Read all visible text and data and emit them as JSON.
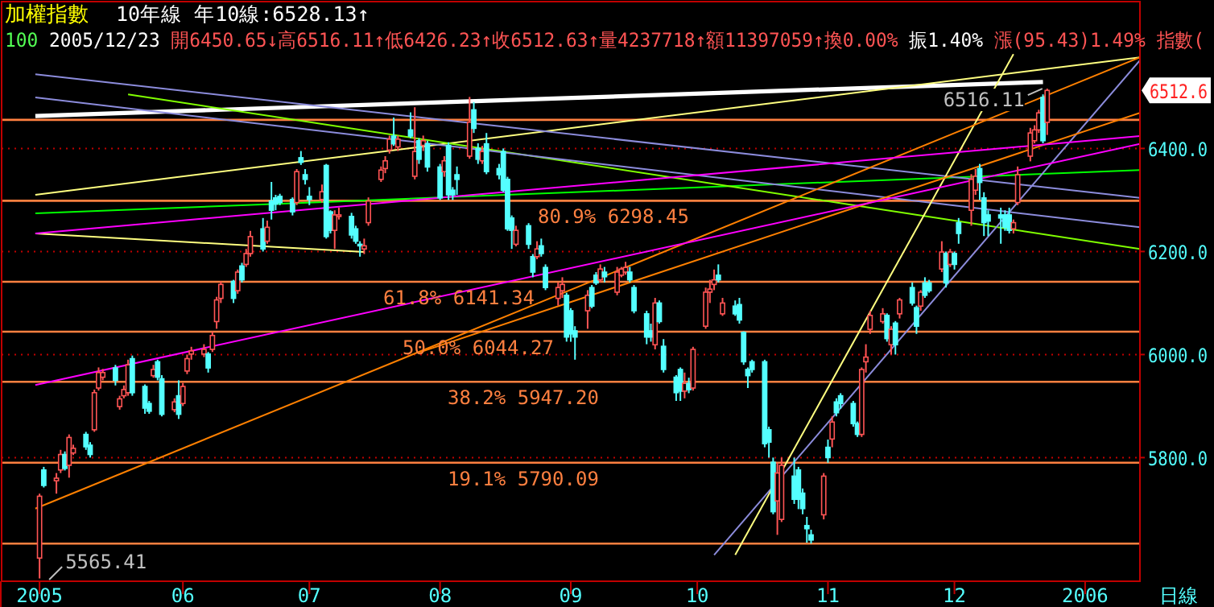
{
  "chart_data": {
    "type": "candlestick",
    "title": "加權指數",
    "subtitle": "100 2005/12/23 開6450.65↓高6516.11↑低6426.23↑收6512.63↑量4237718↑額11397059↑換0.00% 振1.40% 漲(95.43)1.49% 指數(",
    "xlabel": "日線",
    "x": [
      "2005-04-28",
      "2005-04-29",
      "2005-05-02",
      "2005-05-03",
      "2005-05-04",
      "2005-05-05",
      "2005-05-06",
      "2005-05-09",
      "2005-05-10",
      "2005-05-11",
      "2005-05-12",
      "2005-05-13",
      "2005-05-16",
      "2005-05-17",
      "2005-05-18",
      "2005-05-19",
      "2005-05-20",
      "2005-05-23",
      "2005-05-24",
      "2005-05-25",
      "2005-05-26",
      "2005-05-27",
      "2005-05-30",
      "2005-05-31",
      "2005-06-01",
      "2005-06-02",
      "2005-06-03",
      "2005-06-06",
      "2005-06-07",
      "2005-06-08",
      "2005-06-09",
      "2005-06-10",
      "2005-06-13",
      "2005-06-14",
      "2005-06-15",
      "2005-06-16",
      "2005-06-17",
      "2005-06-20",
      "2005-06-21",
      "2005-06-22",
      "2005-06-23",
      "2005-06-24",
      "2005-06-27",
      "2005-06-28",
      "2005-06-29",
      "2005-06-30",
      "2005-07-01",
      "2005-07-04",
      "2005-07-05",
      "2005-07-06",
      "2005-07-07",
      "2005-07-08",
      "2005-07-11",
      "2005-07-12",
      "2005-07-13",
      "2005-07-14",
      "2005-07-15",
      "2005-07-18",
      "2005-07-19",
      "2005-07-20",
      "2005-07-21",
      "2005-07-22",
      "2005-07-25",
      "2005-07-26",
      "2005-07-27",
      "2005-07-28",
      "2005-07-29",
      "2005-08-01",
      "2005-08-02",
      "2005-08-03",
      "2005-08-04",
      "2005-08-05",
      "2005-08-08",
      "2005-08-09",
      "2005-08-10",
      "2005-08-11",
      "2005-08-12",
      "2005-08-15",
      "2005-08-16",
      "2005-08-17",
      "2005-08-18",
      "2005-08-19",
      "2005-08-22",
      "2005-08-23",
      "2005-08-24",
      "2005-08-25",
      "2005-08-26",
      "2005-08-29",
      "2005-08-30",
      "2005-08-31",
      "2005-09-01",
      "2005-09-02",
      "2005-09-05",
      "2005-09-06",
      "2005-09-07",
      "2005-09-08",
      "2005-09-09",
      "2005-09-12",
      "2005-09-13",
      "2005-09-14",
      "2005-09-15",
      "2005-09-16",
      "2005-09-19",
      "2005-09-20",
      "2005-09-21",
      "2005-09-22",
      "2005-09-23",
      "2005-09-26",
      "2005-09-27",
      "2005-09-28",
      "2005-09-29",
      "2005-09-30",
      "2005-10-03",
      "2005-10-04",
      "2005-10-05",
      "2005-10-06",
      "2005-10-07",
      "2005-10-10",
      "2005-10-11",
      "2005-10-12",
      "2005-10-13",
      "2005-10-14",
      "2005-10-17",
      "2005-10-18",
      "2005-10-19",
      "2005-10-20",
      "2005-10-21",
      "2005-10-24",
      "2005-10-25",
      "2005-10-26",
      "2005-10-27",
      "2005-10-28",
      "2005-10-31",
      "2005-11-01",
      "2005-11-02",
      "2005-11-03",
      "2005-11-04",
      "2005-11-07",
      "2005-11-08",
      "2005-11-09",
      "2005-11-10",
      "2005-11-11",
      "2005-11-14",
      "2005-11-15",
      "2005-11-16",
      "2005-11-17",
      "2005-11-18",
      "2005-11-21",
      "2005-11-22",
      "2005-11-23",
      "2005-11-24",
      "2005-11-25",
      "2005-11-28",
      "2005-11-29",
      "2005-11-30",
      "2005-12-01",
      "2005-12-02",
      "2005-12-05",
      "2005-12-06",
      "2005-12-07",
      "2005-12-08",
      "2005-12-09",
      "2005-12-12",
      "2005-12-13",
      "2005-12-14",
      "2005-12-15",
      "2005-12-16",
      "2005-12-19",
      "2005-12-20",
      "2005-12-21",
      "2005-12-22",
      "2005-12-23"
    ],
    "ohlc": [
      [
        5605,
        5730,
        5565.41,
        5725
      ],
      [
        5776,
        5782,
        5742,
        5746
      ],
      [
        5755,
        5770,
        5730,
        5760
      ],
      [
        5776,
        5815,
        5770,
        5806
      ],
      [
        5806,
        5812,
        5775,
        5779
      ],
      [
        5785,
        5845,
        5761,
        5839
      ],
      [
        5809,
        5825,
        5805,
        5818
      ],
      [
        5845,
        5850,
        5815,
        5821
      ],
      [
        5824,
        5830,
        5800,
        5806
      ],
      [
        5854,
        5932,
        5850,
        5926
      ],
      [
        5935,
        5975,
        5930,
        5965
      ],
      [
        5956,
        5972,
        5950,
        5965
      ],
      [
        5974,
        5980,
        5940,
        5950
      ],
      [
        5899,
        5920,
        5893,
        5914
      ],
      [
        5920,
        5940,
        5915,
        5932
      ],
      [
        5926,
        5990,
        5920,
        5980
      ],
      [
        5992,
        5998,
        5920,
        5926
      ],
      [
        5938,
        5942,
        5885,
        5896
      ],
      [
        5905,
        5910,
        5885,
        5890
      ],
      [
        5959,
        5980,
        5955,
        5971
      ],
      [
        5986,
        5990,
        5950,
        5956
      ],
      [
        5953,
        5960,
        5880,
        5884
      ],
      [
        5893,
        5915,
        5888,
        5908
      ],
      [
        5920,
        5950,
        5875,
        5884
      ],
      [
        5905,
        5945,
        5900,
        5938
      ],
      [
        5968,
        6000,
        5962,
        5992
      ],
      [
        6001,
        6015,
        5990,
        6007
      ],
      [
        6001,
        6020,
        5995,
        6010
      ],
      [
        6001,
        6005,
        5965,
        5974
      ],
      [
        6010,
        6045,
        6005,
        6037
      ],
      [
        6064,
        6112,
        6050,
        6106
      ],
      [
        6109,
        6142,
        6100,
        6136
      ],
      [
        6142,
        6145,
        6100,
        6109
      ],
      [
        6124,
        6165,
        6118,
        6160
      ],
      [
        6172,
        6178,
        6140,
        6145
      ],
      [
        6175,
        6205,
        6170,
        6196
      ],
      [
        6196,
        6240,
        6190,
        6229
      ],
      [
        6244,
        6265,
        6200,
        6205
      ],
      [
        6220,
        6260,
        6215,
        6247
      ],
      [
        6298,
        6335,
        6262,
        6280
      ],
      [
        6304,
        6310,
        6280,
        6292
      ],
      [
        6307,
        6312,
        6290,
        6295
      ],
      [
        6301,
        6305,
        6270,
        6277
      ],
      [
        6295,
        6360,
        6290,
        6355
      ],
      [
        6382,
        6395,
        6368,
        6373
      ],
      [
        6349,
        6360,
        6330,
        6340
      ],
      [
        6307,
        6325,
        6290,
        6301
      ],
      [
        6301,
        6330,
        6295,
        6316
      ],
      [
        6367,
        6370,
        6225,
        6229
      ],
      [
        6277,
        6280,
        6235,
        6241
      ],
      [
        6241,
        6280,
        6205,
        6271
      ],
      [
        6268,
        6285,
        6262,
        6271
      ],
      [
        6268,
        6275,
        6225,
        6232
      ],
      [
        6244,
        6250,
        6215,
        6220
      ],
      [
        6214,
        6220,
        6190,
        6211
      ],
      [
        6205,
        6225,
        6195,
        6211
      ],
      [
        6256,
        6305,
        6250,
        6298
      ],
      [
        6340,
        6365,
        6335,
        6358
      ],
      [
        6361,
        6385,
        6352,
        6376
      ],
      [
        6397,
        6425,
        6390,
        6418
      ],
      [
        6424,
        6460,
        6405,
        6409
      ],
      [
        6403,
        6425,
        6395,
        6418
      ],
      [
        6436,
        6470,
        6420,
        6424
      ],
      [
        6346,
        6480,
        6340,
        6394
      ],
      [
        6415,
        6420,
        6370,
        6379
      ],
      [
        6406,
        6425,
        6395,
        6415
      ],
      [
        6409,
        6415,
        6355,
        6364
      ],
      [
        6364,
        6370,
        6300,
        6304
      ],
      [
        6355,
        6385,
        6345,
        6376
      ],
      [
        6406,
        6412,
        6300,
        6310
      ],
      [
        6319,
        6325,
        6300,
        6310
      ],
      [
        6349,
        6365,
        6310,
        6340
      ],
      [
        6385,
        6500,
        6380,
        6451
      ],
      [
        6475,
        6490,
        6430,
        6439
      ],
      [
        6400,
        6410,
        6370,
        6379
      ],
      [
        6376,
        6405,
        6370,
        6394
      ],
      [
        6409,
        6430,
        6350,
        6355
      ],
      [
        6361,
        6370,
        6340,
        6349
      ],
      [
        6394,
        6400,
        6315,
        6319
      ],
      [
        6340,
        6345,
        6240,
        6244
      ],
      [
        6265,
        6270,
        6205,
        6241
      ],
      [
        6214,
        6250,
        6210,
        6241
      ],
      [
        6250,
        6255,
        6205,
        6214
      ],
      [
        6190,
        6195,
        6150,
        6160
      ],
      [
        6190,
        6220,
        6185,
        6205
      ],
      [
        6211,
        6225,
        6190,
        6196
      ],
      [
        6169,
        6175,
        6125,
        6130
      ],
      [
        6109,
        6140,
        6095,
        6130
      ],
      [
        6124,
        6150,
        6110,
        6136
      ],
      [
        6115,
        6120,
        6025,
        6034
      ],
      [
        6085,
        6090,
        6025,
        6040
      ],
      [
        6046,
        6055,
        5990,
        6034
      ],
      [
        6085,
        6125,
        6050,
        6115
      ],
      [
        6130,
        6135,
        6090,
        6094
      ],
      [
        6154,
        6160,
        6135,
        6139
      ],
      [
        6145,
        6175,
        6140,
        6166
      ],
      [
        6160,
        6170,
        6140,
        6151
      ],
      [
        6121,
        6170,
        6115,
        6160
      ],
      [
        6154,
        6170,
        6150,
        6166
      ],
      [
        6160,
        6180,
        6155,
        6169
      ],
      [
        6160,
        6170,
        6140,
        6145
      ],
      [
        6130,
        6135,
        6080,
        6085
      ],
      [
        6079,
        6085,
        6020,
        6034
      ],
      [
        6046,
        6060,
        6025,
        6034
      ],
      [
        6019,
        6110,
        6010,
        6100
      ],
      [
        6100,
        6105,
        6060,
        6064
      ],
      [
        6016,
        6030,
        5965,
        5971
      ],
      [
        5956,
        5960,
        5910,
        5926
      ],
      [
        5971,
        5975,
        5910,
        5929
      ],
      [
        5929,
        5965,
        5915,
        5944
      ],
      [
        5944,
        5955,
        5925,
        5932
      ],
      [
        5935,
        6015,
        5930,
        6010
      ],
      [
        6055,
        6130,
        6050,
        6121
      ],
      [
        6121,
        6145,
        6100,
        6127
      ],
      [
        6136,
        6165,
        6125,
        6145
      ],
      [
        6154,
        6175,
        6140,
        6145
      ],
      [
        6079,
        6110,
        6075,
        6100
      ],
      [
        6094,
        6105,
        6075,
        6079
      ],
      [
        6097,
        6110,
        6060,
        6067
      ],
      [
        6043,
        6045,
        5980,
        5986
      ],
      [
        5971,
        5975,
        5935,
        5959
      ],
      [
        5986,
        5990,
        5965,
        5971
      ],
      [
        5986,
        5990,
        5820,
        5827
      ],
      [
        5854,
        5860,
        5800,
        5830
      ],
      [
        5791,
        5800,
        5690,
        5695
      ],
      [
        5716,
        5790,
        5650,
        5770
      ],
      [
        5680,
        5800,
        5675,
        5785
      ],
      [
        5764,
        5800,
        5710,
        5719
      ],
      [
        5776,
        5782,
        5700,
        5719
      ],
      [
        5731,
        5740,
        5690,
        5701
      ],
      [
        5668,
        5685,
        5635,
        5662
      ],
      [
        5650,
        5660,
        5632.97,
        5640
      ],
      [
        5689,
        5770,
        5680,
        5764
      ],
      [
        5820,
        5835,
        5790,
        5800
      ],
      [
        5836,
        5880,
        5820,
        5869
      ],
      [
        5908,
        5915,
        5880,
        5887
      ],
      [
        5920,
        5925,
        5895,
        5905
      ],
      [
        5905,
        5910,
        5860,
        5866
      ],
      [
        5866,
        5870,
        5840,
        5845
      ],
      [
        5845,
        5975,
        5840,
        5971
      ],
      [
        5986,
        6020,
        5965,
        5995
      ],
      [
        6049,
        6085,
        6040,
        6076
      ],
      [
        6064,
        6090,
        6060,
        6079
      ],
      [
        6076,
        6080,
        6025,
        6031
      ],
      [
        6019,
        6055,
        6000,
        6049
      ],
      [
        6061,
        6065,
        6000,
        6019
      ],
      [
        6079,
        6110,
        6070,
        6106
      ],
      [
        6130,
        6140,
        6095,
        6100
      ],
      [
        6091,
        6095,
        6040,
        6055
      ],
      [
        6094,
        6125,
        6085,
        6121
      ],
      [
        6139,
        6150,
        6110,
        6115
      ],
      [
        6139,
        6145,
        6120,
        6124
      ],
      [
        6166,
        6220,
        6160,
        6199
      ],
      [
        6196,
        6200,
        6130,
        6139
      ],
      [
        6175,
        6205,
        6170,
        6199
      ],
      [
        6196,
        6200,
        6165,
        6175
      ],
      [
        6256,
        6265,
        6215,
        6235
      ],
      [
        6280,
        6350,
        6250,
        6340
      ],
      [
        6319,
        6360,
        6310,
        6346
      ],
      [
        6361,
        6370,
        6300,
        6334
      ],
      [
        6304,
        6315,
        6230,
        6256
      ],
      [
        6271,
        6280,
        6230,
        6259
      ],
      [
        6271,
        6285,
        6215,
        6265
      ],
      [
        6271,
        6280,
        6240,
        6247
      ],
      [
        6271,
        6285,
        6235,
        6241
      ],
      [
        6244,
        6262,
        6235,
        6256
      ],
      [
        6295,
        6365,
        6290,
        6349
      ],
      [
        6385,
        6440,
        6375,
        6430
      ],
      [
        6415,
        6445,
        6410,
        6436
      ],
      [
        6436,
        6475,
        6430,
        6469
      ],
      [
        6499,
        6505,
        6410,
        6415
      ],
      [
        6450.65,
        6516.11,
        6426.23,
        6512.63
      ]
    ],
    "colors": [
      "#ff5454",
      "#54ffff",
      "#ff5454",
      "#ff5454",
      "#54ffff",
      "#ff5454",
      "#ff5454",
      "#54ffff",
      "#54ffff",
      "#ff5454",
      "#ff5454",
      "#ff5454",
      "#54ffff",
      "#ff5454",
      "#ff5454",
      "#ff5454",
      "#54ffff",
      "#54ffff",
      "#54ffff",
      "#ff5454",
      "#54ffff",
      "#54ffff",
      "#ff5454",
      "#54ffff",
      "#ff5454",
      "#ff5454",
      "#ff5454",
      "#ff5454",
      "#54ffff",
      "#ff5454",
      "#ff5454",
      "#ff5454",
      "#54ffff",
      "#ff5454",
      "#54ffff",
      "#ff5454",
      "#ff5454",
      "#54ffff",
      "#ff5454",
      "#54ffff",
      "#54ffff",
      "#54ffff",
      "#54ffff",
      "#ff5454",
      "#54ffff",
      "#54ffff",
      "#54ffff",
      "#ff5454",
      "#54ffff",
      "#54ffff",
      "#ff5454",
      "#ff5454",
      "#54ffff",
      "#54ffff",
      "#54ffff",
      "#ff5454",
      "#ff5454",
      "#ff5454",
      "#ff5454",
      "#ff5454",
      "#54ffff",
      "#ff5454",
      "#54ffff",
      "#ff5454",
      "#54ffff",
      "#ff5454",
      "#54ffff",
      "#54ffff",
      "#ff5454",
      "#54ffff",
      "#54ffff",
      "#54ffff",
      "#ff5454",
      "#54ffff",
      "#54ffff",
      "#ff5454",
      "#54ffff",
      "#54ffff",
      "#54ffff",
      "#54ffff",
      "#54ffff",
      "#ff5454",
      "#54ffff",
      "#54ffff",
      "#ff5454",
      "#54ffff",
      "#54ffff",
      "#ff5454",
      "#ff5454",
      "#54ffff",
      "#54ffff",
      "#54ffff",
      "#ff5454",
      "#54ffff",
      "#54ffff",
      "#ff5454",
      "#54ffff",
      "#ff5454",
      "#ff5454",
      "#ff5454",
      "#54ffff",
      "#54ffff",
      "#54ffff",
      "#54ffff",
      "#ff5454",
      "#54ffff",
      "#54ffff",
      "#54ffff",
      "#54ffff",
      "#ff5454",
      "#54ffff",
      "#ff5454",
      "#ff5454",
      "#ff5454",
      "#ff5454",
      "#54ffff",
      "#ff5454",
      "#54ffff",
      "#54ffff",
      "#54ffff",
      "#54ffff",
      "#54ffff",
      "#54ffff",
      "#54ffff",
      "#54ffff",
      "#ff5454",
      "#ff5454",
      "#54ffff",
      "#54ffff",
      "#54ffff",
      "#54ffff",
      "#54ffff",
      "#ff5454",
      "#54ffff",
      "#ff5454",
      "#54ffff",
      "#54ffff",
      "#54ffff",
      "#54ffff",
      "#ff5454",
      "#ff5454",
      "#ff5454",
      "#ff5454",
      "#54ffff",
      "#ff5454",
      "#54ffff",
      "#ff5454",
      "#54ffff",
      "#54ffff",
      "#ff5454",
      "#54ffff",
      "#54ffff",
      "#ff5454",
      "#54ffff",
      "#ff5454",
      "#54ffff",
      "#54ffff",
      "#ff5454",
      "#ff5454",
      "#54ffff",
      "#54ffff",
      "#54ffff",
      "#54ffff",
      "#54ffff",
      "#54ffff",
      "#ff5454",
      "#ff5454",
      "#ff5454",
      "#ff5454",
      "#ff5454",
      "#54ffff",
      "#ff5454"
    ],
    "xlim": [
      "2005-04-19",
      "2006-01-14"
    ],
    "xticks": [
      {
        "value": "2005-04-28",
        "label": "2005"
      },
      {
        "value": "2005-06-01",
        "label": "06"
      },
      {
        "value": "2005-07-01",
        "label": "07"
      },
      {
        "value": "2005-08-01",
        "label": "08"
      },
      {
        "value": "2005-09-01",
        "label": "09"
      },
      {
        "value": "2005-10-01",
        "label": "10"
      },
      {
        "value": "2005-11-01",
        "label": "11"
      },
      {
        "value": "2005-12-01",
        "label": "12"
      },
      {
        "value": "2006-01-01",
        "label": "2006"
      }
    ],
    "ylim": [
      5560,
      6685
    ],
    "yticks": [
      {
        "value": 5800,
        "label": "5800.0"
      },
      {
        "value": 6000,
        "label": "6000.0"
      },
      {
        "value": 6200,
        "label": "6200.0"
      },
      {
        "value": 6400,
        "label": "6400.0"
      }
    ],
    "grid": "y",
    "ref_lines": [
      {
        "axis": "y",
        "value": 6455.57,
        "label": null,
        "color": "#ff8040"
      },
      {
        "axis": "y",
        "value": 6298.45,
        "label": "80.9% 6298.45",
        "color": "#ff8040"
      },
      {
        "axis": "y",
        "value": 6141.34,
        "label": "61.8% 6141.34",
        "color": "#ff8040"
      },
      {
        "axis": "y",
        "value": 6044.27,
        "label": "50.0% 6044.27",
        "color": "#ff8040"
      },
      {
        "axis": "y",
        "value": 5947.2,
        "label": "38.2% 5947.20",
        "color": "#ff8040"
      },
      {
        "axis": "y",
        "value": 5790.09,
        "label": "19.1% 5790.09",
        "color": "#ff8040"
      },
      {
        "axis": "y",
        "value": 5632.97,
        "label": null,
        "color": "#ff8040"
      }
    ],
    "annotations": [
      "10年線 年10線:6528.13↑",
      {
        "text": "6516.11",
        "x": "2005-12-23",
        "y": 6516.11
      },
      "5565.41",
      "6512.6"
    ],
    "series": [
      {
        "type": "line",
        "color": "#ffffff",
        "x": [
          "2005-04-27",
          "2005-12-22"
        ],
        "values": [
          6463,
          6529
        ]
      },
      {
        "type": "line",
        "color": "#ffff80",
        "x": [
          "2005-04-27",
          "2006-01-14"
        ],
        "values": [
          6310,
          6577
        ]
      },
      {
        "type": "line",
        "color": "#ffff80",
        "x": [
          "2005-04-27",
          "2005-07-14"
        ],
        "values": [
          6235,
          6199
        ]
      },
      {
        "type": "line",
        "color": "#00ff00",
        "x": [
          "2005-04-27",
          "2006-01-14"
        ],
        "values": [
          6274,
          6358
        ]
      },
      {
        "type": "line",
        "color": "#80ff00",
        "x": [
          "2005-05-19",
          "2006-01-14"
        ],
        "values": [
          6505,
          6205
        ]
      },
      {
        "type": "line",
        "color": "#8c8cdc",
        "x": [
          "2005-04-27",
          "2006-01-14"
        ],
        "values": [
          6544,
          6304
        ]
      },
      {
        "type": "line",
        "color": "#8c8cdc",
        "x": [
          "2005-04-27",
          "2006-01-14"
        ],
        "values": [
          6499,
          6247
        ]
      },
      {
        "type": "line",
        "color": "#8c8cdc",
        "x": [
          "2005-10-05",
          "2006-01-14"
        ],
        "values": [
          5611,
          6571
        ]
      },
      {
        "type": "line",
        "color": "#ffff80",
        "x": [
          "2005-10-10",
          "2005-12-15"
        ],
        "values": [
          5611,
          6583
        ]
      },
      {
        "type": "line",
        "color": "#ff8000",
        "x": [
          "2005-04-27",
          "2006-01-14"
        ],
        "values": [
          5701,
          6577
        ]
      },
      {
        "type": "line",
        "color": "#ff8000",
        "x": [
          "2005-07-27",
          "2006-01-14"
        ],
        "values": [
          6004,
          6469
        ]
      },
      {
        "type": "line",
        "color": "#ff00ff",
        "x": [
          "2005-04-27",
          "2006-01-14"
        ],
        "values": [
          5941,
          6409
        ]
      },
      {
        "type": "line",
        "color": "#ff00ff",
        "x": [
          "2005-04-27",
          "2006-01-14"
        ],
        "values": [
          6235,
          6424
        ]
      }
    ]
  }
}
